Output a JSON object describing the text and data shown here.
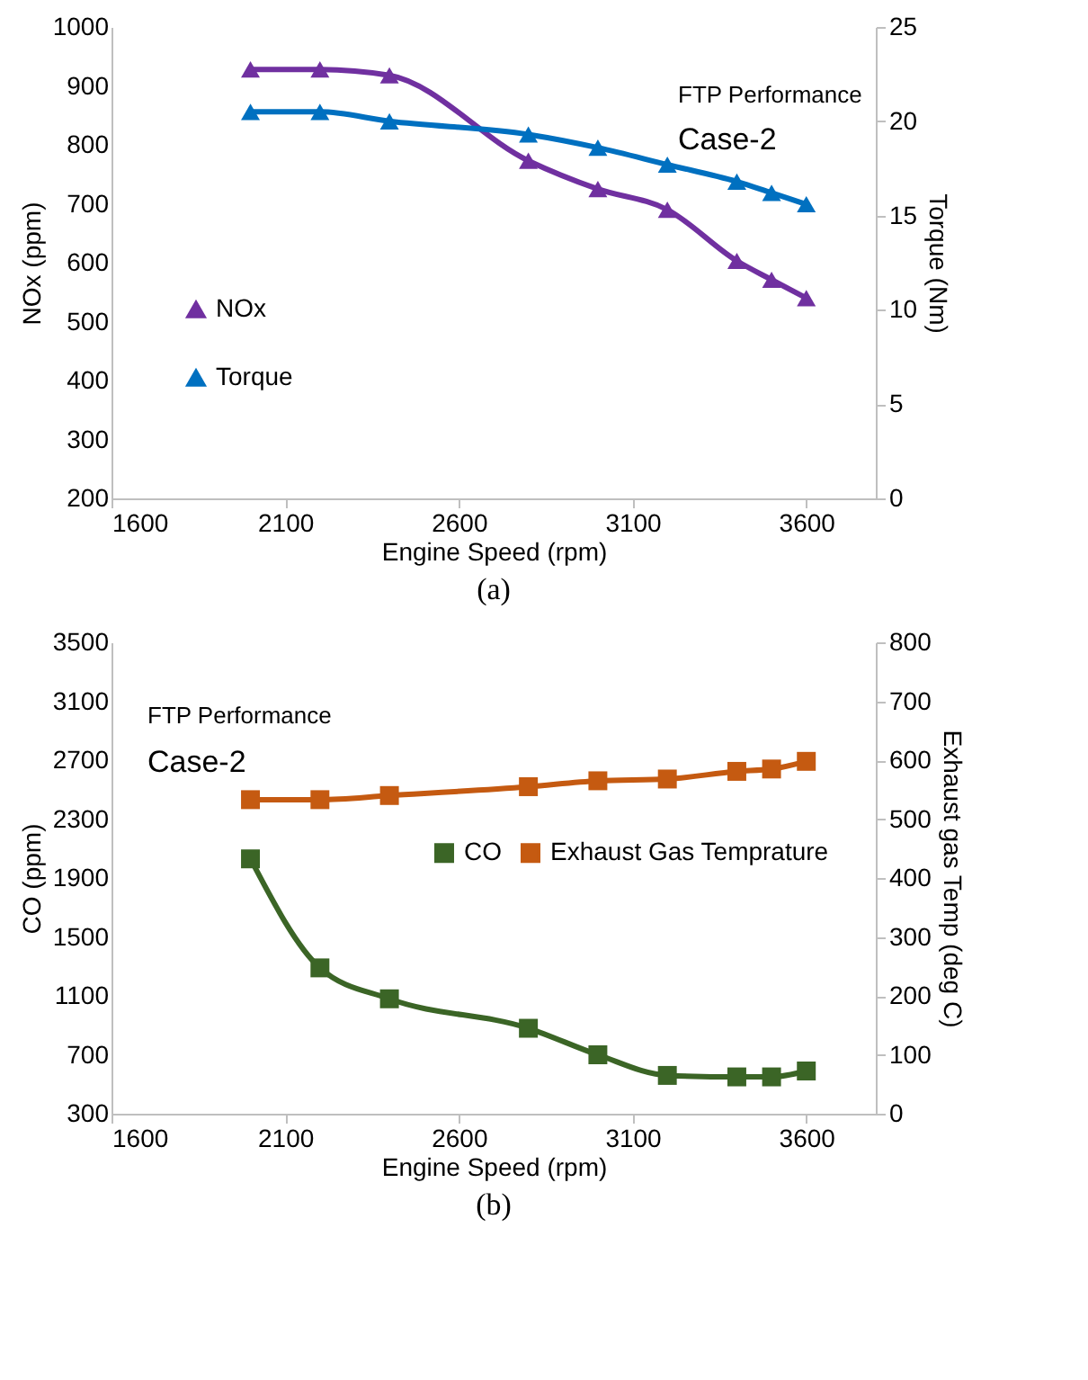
{
  "chart_data": [
    {
      "type": "line",
      "xlabel": "Engine Speed (rpm)",
      "ylabel": "NOx (ppm)",
      "y2label": "Torque (Nm)",
      "x": [
        2000,
        2200,
        2400,
        2800,
        3000,
        3200,
        3400,
        3500,
        3600
      ],
      "xlim": [
        1600,
        3800
      ],
      "xticks": [
        1600,
        2100,
        2600,
        3100,
        3600
      ],
      "ylim": [
        200,
        1000
      ],
      "yticks": [
        200,
        300,
        400,
        500,
        600,
        700,
        800,
        900,
        1000
      ],
      "y2lim": [
        0,
        25
      ],
      "y2ticks": [
        0,
        5,
        10,
        15,
        20,
        25
      ],
      "marker": "triangle",
      "legend": "left",
      "grid": false,
      "annotations": [
        "FTP Performance",
        "Case-2",
        "(a)"
      ],
      "series": [
        {
          "name": "NOx",
          "color": "#7030a0",
          "values": [
            928,
            928,
            918,
            773,
            725,
            690,
            603,
            571,
            540
          ]
        },
        {
          "name": "Torque",
          "color": "#0070c0",
          "axis": "y2",
          "values": [
            20.5,
            20.5,
            20.0,
            19.3,
            18.6,
            17.7,
            16.8,
            16.2,
            15.6
          ]
        }
      ]
    },
    {
      "type": "line",
      "xlabel": "Engine Speed (rpm)",
      "ylabel": "CO (ppm)",
      "y2label": "Exhaust gas Temp (deg C)",
      "x": [
        2000,
        2200,
        2400,
        2800,
        3000,
        3200,
        3400,
        3500,
        3600
      ],
      "xlim": [
        1600,
        3800
      ],
      "xticks": [
        1600,
        2100,
        2600,
        3100,
        3600
      ],
      "ylim": [
        300,
        3500
      ],
      "yticks": [
        300,
        700,
        1100,
        1500,
        1900,
        2300,
        2700,
        3100,
        3500
      ],
      "y2lim": [
        0,
        800
      ],
      "y2ticks": [
        0,
        100,
        200,
        300,
        400,
        500,
        600,
        700,
        800
      ],
      "marker": "square",
      "legend": "right",
      "grid": false,
      "annotations": [
        "FTP Performance",
        "Case-2",
        "(b)"
      ],
      "series": [
        {
          "name": "CO",
          "color": "#3b6526",
          "values": [
            2030,
            1290,
            1080,
            880,
            700,
            560,
            550,
            550,
            590
          ]
        },
        {
          "name": "Exhaust Gas Temprature",
          "color": "#c55a11",
          "axis": "y2",
          "values": [
            533,
            533,
            540,
            555,
            565,
            568,
            581,
            585,
            598
          ]
        }
      ]
    }
  ]
}
